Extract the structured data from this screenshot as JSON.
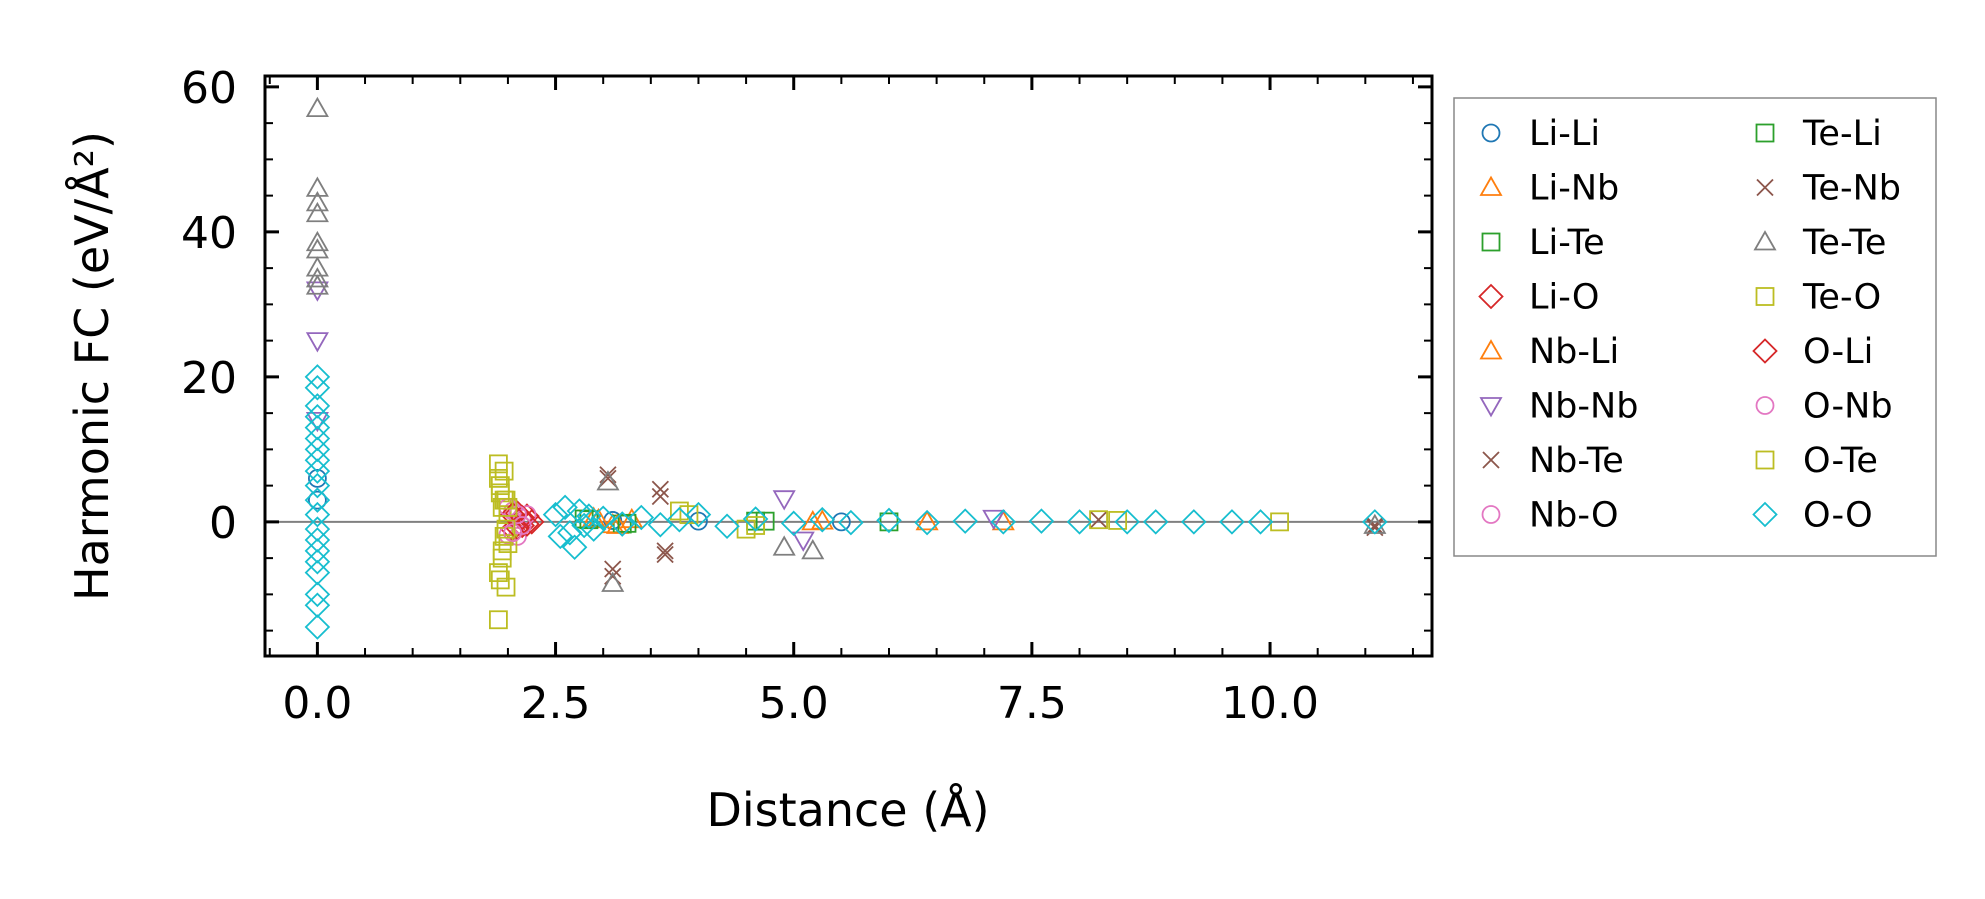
{
  "chart_data": {
    "type": "scatter",
    "title": "",
    "xlabel": "Distance (Å)",
    "ylabel": "Harmonic FC (eV/Å²)",
    "xlim": [
      -0.55,
      11.7
    ],
    "ylim": [
      -18.5,
      61.5
    ],
    "xticks": [
      0.0,
      2.5,
      5.0,
      7.5,
      10.0
    ],
    "xtick_labels": [
      "0.0",
      "2.5",
      "5.0",
      "7.5",
      "10.0"
    ],
    "yticks": [
      0,
      20,
      40,
      60
    ],
    "ytick_labels": [
      "0",
      "20",
      "40",
      "60"
    ],
    "zero_line": true,
    "legend_position": "outside-right",
    "series": [
      {
        "name": "Li-Li",
        "marker": "circle",
        "color": "#1f77b4",
        "x": [
          0.0,
          0.0,
          3.1,
          4.0,
          5.5
        ],
        "y": [
          6.0,
          3.0,
          0.2,
          0.1,
          0.0
        ]
      },
      {
        "name": "Li-Nb",
        "marker": "triangle-up",
        "color": "#ff7f0e",
        "x": [
          2.9,
          3.1,
          3.3,
          5.2,
          6.4
        ],
        "y": [
          0.5,
          -0.4,
          0.3,
          0.0,
          0.0
        ]
      },
      {
        "name": "Li-Te",
        "marker": "square",
        "color": "#2ca02c",
        "x": [
          2.8,
          3.2,
          4.6,
          6.0
        ],
        "y": [
          0.4,
          -0.3,
          0.1,
          0.0
        ]
      },
      {
        "name": "Li-O",
        "marker": "diamond",
        "color": "#d62728",
        "x": [
          2.05,
          2.1,
          2.15,
          2.2,
          2.25
        ],
        "y": [
          -1.0,
          1.2,
          -0.5,
          0.8,
          0.0
        ]
      },
      {
        "name": "Nb-Li",
        "marker": "triangle-up",
        "color": "#ff7f0e",
        "x": [
          2.95,
          3.15,
          5.3,
          7.2
        ],
        "y": [
          0.3,
          -0.5,
          0.1,
          0.0
        ]
      },
      {
        "name": "Nb-Nb",
        "marker": "triangle-down",
        "color": "#9467bd",
        "x": [
          0.0,
          0.0,
          0.0,
          4.9,
          5.1,
          7.1
        ],
        "y": [
          32.0,
          25.0,
          14.0,
          3.2,
          -2.5,
          0.5
        ]
      },
      {
        "name": "Nb-Te",
        "marker": "x",
        "color": "#8c564b",
        "x": [
          3.05,
          3.1,
          3.6,
          3.65,
          8.2,
          11.1
        ],
        "y": [
          6.5,
          -6.5,
          4.5,
          -4.0,
          0.3,
          -0.8
        ]
      },
      {
        "name": "Nb-O",
        "marker": "circle",
        "color": "#e377c2",
        "x": [
          2.0,
          2.05,
          2.1,
          2.15,
          2.2
        ],
        "y": [
          -1.8,
          1.5,
          -2.0,
          0.5,
          1.0
        ]
      },
      {
        "name": "Te-Li",
        "marker": "square",
        "color": "#2ca02c",
        "x": [
          2.85,
          3.25,
          4.7
        ],
        "y": [
          0.3,
          -0.2,
          0.1
        ]
      },
      {
        "name": "Te-Nb",
        "marker": "x",
        "color": "#8c564b",
        "x": [
          3.05,
          3.1,
          3.6,
          3.65,
          11.1
        ],
        "y": [
          6.0,
          -7.5,
          3.5,
          -4.5,
          -0.5
        ]
      },
      {
        "name": "Te-Te",
        "marker": "triangle-up",
        "color": "#7f7f7f",
        "x": [
          0.0,
          0.0,
          0.0,
          0.0,
          0.0,
          0.0,
          0.0,
          0.0,
          0.0,
          3.05,
          3.1,
          4.9,
          5.2,
          11.1
        ],
        "y": [
          57.0,
          46.0,
          44.0,
          42.5,
          38.5,
          37.5,
          35.0,
          33.5,
          32.5,
          5.5,
          -8.5,
          -3.5,
          -4.0,
          -0.5
        ]
      },
      {
        "name": "Te-O",
        "marker": "square",
        "color": "#bcbd22",
        "x": [
          1.9,
          1.9,
          1.9,
          1.92,
          1.92,
          1.94,
          1.94,
          1.96,
          1.96,
          1.98,
          1.98,
          2.0,
          2.0,
          3.8,
          4.5,
          8.2,
          10.1
        ],
        "y": [
          8.0,
          -13.5,
          6.0,
          -8.0,
          4.0,
          -5.0,
          2.0,
          -2.0,
          7.0,
          -9.0,
          3.0,
          -3.0,
          1.0,
          1.5,
          -1.0,
          0.3,
          0.0
        ]
      },
      {
        "name": "O-Li",
        "marker": "diamond",
        "color": "#d62728",
        "x": [
          2.05,
          2.1,
          2.15,
          2.2
        ],
        "y": [
          1.0,
          -0.8,
          0.6,
          -0.3
        ]
      },
      {
        "name": "O-Nb",
        "marker": "circle",
        "color": "#e377c2",
        "x": [
          2.0,
          2.05,
          2.1,
          2.15
        ],
        "y": [
          2.0,
          -1.5,
          1.0,
          -0.5
        ]
      },
      {
        "name": "O-Te",
        "marker": "square",
        "color": "#bcbd22",
        "x": [
          1.9,
          1.92,
          1.94,
          1.96,
          1.98,
          2.0,
          3.9,
          4.6,
          8.4
        ],
        "y": [
          -7.0,
          5.0,
          -4.0,
          3.0,
          -1.0,
          2.0,
          1.0,
          -0.5,
          0.2
        ]
      },
      {
        "name": "O-O",
        "marker": "diamond",
        "color": "#17becf",
        "x": [
          0.0,
          0.0,
          0.0,
          0.0,
          0.0,
          0.0,
          0.0,
          0.0,
          0.0,
          0.0,
          0.0,
          0.0,
          0.0,
          0.0,
          0.0,
          0.0,
          0.0,
          0.0,
          0.0,
          0.0,
          2.5,
          2.55,
          2.6,
          2.65,
          2.7,
          2.75,
          2.8,
          2.85,
          2.9,
          3.0,
          3.2,
          3.4,
          3.6,
          3.8,
          4.0,
          4.3,
          4.6,
          5.0,
          5.3,
          5.6,
          6.0,
          6.4,
          6.8,
          7.2,
          7.6,
          8.0,
          8.5,
          8.8,
          9.2,
          9.6,
          9.9,
          11.1
        ],
        "y": [
          20.0,
          18.5,
          16.0,
          14.5,
          13.0,
          11.5,
          10.0,
          8.5,
          7.0,
          5.0,
          3.0,
          1.0,
          -1.0,
          -2.5,
          -4.0,
          -5.5,
          -7.0,
          -10.0,
          -11.5,
          -14.5,
          1.0,
          -2.0,
          2.0,
          -1.5,
          -3.5,
          1.5,
          -0.5,
          0.8,
          -1.0,
          0.5,
          -0.3,
          0.6,
          -0.4,
          0.3,
          1.0,
          -0.6,
          0.4,
          -0.2,
          0.3,
          -0.1,
          0.2,
          -0.1,
          0.1,
          0.0,
          0.1,
          0.0,
          0.0,
          0.0,
          0.0,
          0.0,
          0.0,
          0.0
        ]
      }
    ]
  }
}
